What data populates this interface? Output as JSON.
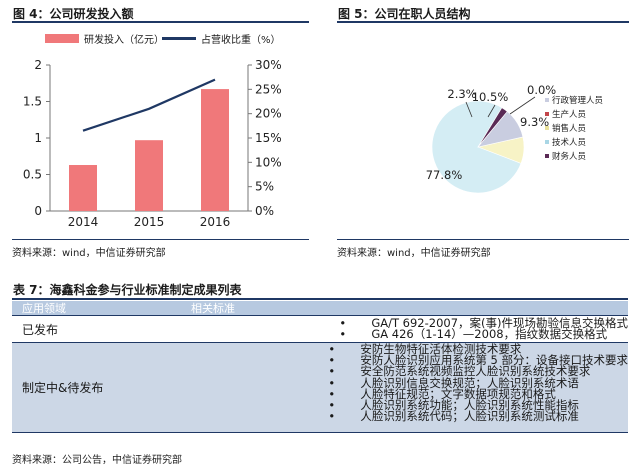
{
  "fig4": {
    "title": "图 4：公司研发投入额",
    "source": "资料来源：wind，中信证券研究部",
    "legend": {
      "bar": "研发投入（亿元）",
      "line": "占营收比重（%）"
    }
  },
  "fig5": {
    "title": "图 5：公司在职人员结构",
    "source": "资料来源：wind，中信证券研究部"
  },
  "table7": {
    "title": "表 7：海鑫科金参与行业标准制定成果列表",
    "headers": [
      "应用领域",
      "相关标准"
    ],
    "rows": [
      {
        "category": "已发布",
        "items": [
          "GA/T 692-2007，案(事)件现场勘验信息交换格式",
          "GA 426（1-14）—2008，指纹数据交换格式"
        ]
      },
      {
        "category": "制定中&待发布",
        "items": [
          "安防生物特征活体检测技术要求",
          "安防人脸识别应用系统第 5 部分：设备接口技术要求",
          "安全防范系统视频监控人脸识别系统技术要求",
          "人脸识别信息交换规范；人脸识别系统术语",
          "人脸特征规范；文字数据项规范和格式",
          "人脸识别系统功能；人脸识别系统性能指标",
          "人脸识别系统代码；人脸识别系统测试标准"
        ]
      }
    ],
    "source": "资料来源：公司公告，中信证券研究部",
    "bullet": "•"
  },
  "chart_data": [
    {
      "type": "bar",
      "categories": [
        "2014",
        "2015",
        "2016"
      ],
      "series": [
        {
          "name": "研发投入（亿元）",
          "type": "bar",
          "axis": "left",
          "values": [
            0.63,
            0.97,
            1.67
          ],
          "color": "#f0787a"
        },
        {
          "name": "占营收比重（%）",
          "type": "line",
          "axis": "right",
          "values": [
            16.5,
            21.0,
            27.0
          ],
          "color": "#1f3864"
        }
      ],
      "ylim": [
        0,
        2
      ],
      "yticks": [
        "0",
        "0.5",
        "1",
        "1.5",
        "2"
      ],
      "ytick_values": [
        0,
        0.5,
        1,
        1.5,
        2
      ],
      "y2lim": [
        0,
        30
      ],
      "y2ticks": [
        "0%",
        "5%",
        "10%",
        "15%",
        "20%",
        "25%",
        "30%"
      ],
      "y2tick_values": [
        0,
        5,
        10,
        15,
        20,
        25,
        30
      ],
      "legend_position": "top-left",
      "grid": false
    },
    {
      "type": "pie",
      "slices": [
        {
          "name": "技术人员",
          "value": 77.8,
          "label": "77.8%",
          "color": "#d4edf4"
        },
        {
          "name": "销售人员",
          "value": 9.3,
          "label": "9.3%",
          "color": "#f7f3c6"
        },
        {
          "name": "生产人员",
          "value": 0.0,
          "label": "0.0%",
          "color": "#c2464a"
        },
        {
          "name": "行政管理人员",
          "value": 10.5,
          "label": "10.5%",
          "color": "#c9cde0"
        },
        {
          "name": "财务人员",
          "value": 2.3,
          "label": "2.3%",
          "color": "#5a2a55"
        }
      ],
      "legend_order": [
        "行政管理人员",
        "生产人员",
        "销售人员",
        "技术人员",
        "财务人员"
      ],
      "legend_position": "right"
    }
  ]
}
